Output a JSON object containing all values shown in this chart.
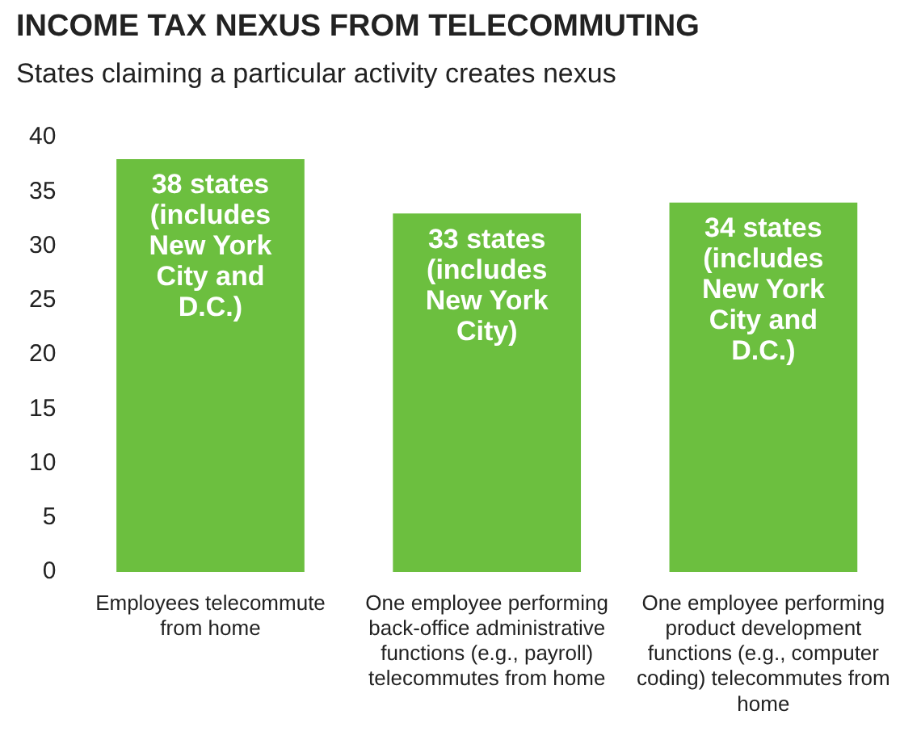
{
  "chart_data": {
    "type": "bar",
    "title": "INCOME TAX NEXUS FROM TELECOMMUTING",
    "subtitle": "States claiming a particular activity creates nexus",
    "categories": [
      "Employees telecommute from home",
      "One employee performing back-office administrative functions (e.g., payroll) telecommutes from home",
      "One employee performing product development functions (e.g., computer coding) telecommutes from home"
    ],
    "values": [
      38,
      33,
      34
    ],
    "color": "#6cbf3f",
    "value_labels": [
      "38 states (includes New York City and D.C.)",
      "33 states (includes New York City)",
      "34 states (includes New York City and D.C.)"
    ],
    "ylim": [
      0,
      40
    ],
    "yticks": [
      0,
      5,
      10,
      15,
      20,
      25,
      30,
      35,
      40
    ],
    "grid": false,
    "legend": false
  }
}
